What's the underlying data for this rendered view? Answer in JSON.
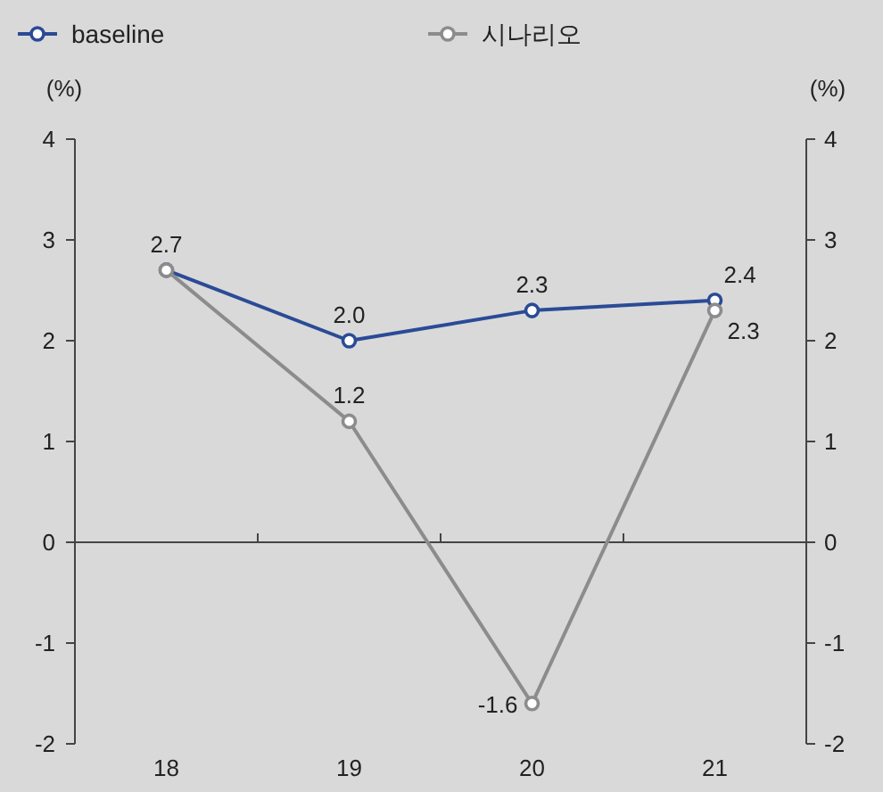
{
  "chart_data": {
    "type": "line",
    "categories": [
      "18",
      "19",
      "20",
      "21"
    ],
    "series": [
      {
        "name": "baseline",
        "color": "#2a4b96",
        "values": [
          2.7,
          2.0,
          2.3,
          2.4
        ],
        "value_labels": [
          "2.7",
          "2.0",
          "2.3",
          "2.4"
        ]
      },
      {
        "name": "시나리오",
        "color": "#8c8c8c",
        "values": [
          2.7,
          1.2,
          -1.6,
          2.3
        ],
        "value_labels": [
          null,
          "1.2",
          "-1.6",
          "2.3"
        ]
      }
    ],
    "ylabel": "(%)",
    "y2label": "(%)",
    "ylim": [
      -2,
      4
    ],
    "yticks": [
      -2,
      -1,
      0,
      1,
      2,
      3,
      4
    ],
    "y2lim": [
      -2,
      4
    ],
    "y2ticks": [
      -2,
      -1,
      0,
      1,
      2,
      3,
      4
    ],
    "legend": "top",
    "marker": "circle",
    "line_style": "solid"
  }
}
